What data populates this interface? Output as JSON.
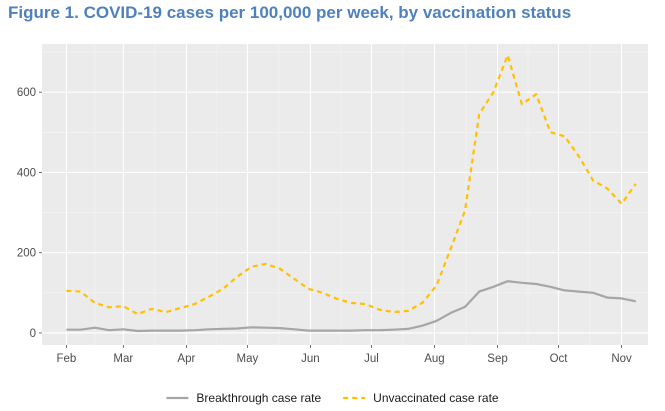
{
  "figure": {
    "title": "Figure 1. COVID-19 cases per 100,000 per week, by vaccination status"
  },
  "chart_data": {
    "type": "line",
    "title": "",
    "xlabel": "",
    "ylabel": "",
    "x_ticks": [
      "Feb",
      "Mar",
      "Apr",
      "May",
      "Jun",
      "Jul",
      "Aug",
      "Sep",
      "Oct",
      "Nov"
    ],
    "y_ticks": [
      0,
      200,
      400,
      600
    ],
    "ylim": [
      -30,
      720
    ],
    "grid": true,
    "legend_position": "bottom",
    "series": [
      {
        "name": "Breakthrough case rate",
        "color": "#a6a6a6",
        "style": "solid",
        "points": [
          {
            "x": "2021-02-01",
            "y": 8
          },
          {
            "x": "2021-02-08",
            "y": 8
          },
          {
            "x": "2021-02-15",
            "y": 13
          },
          {
            "x": "2021-02-22",
            "y": 7
          },
          {
            "x": "2021-03-01",
            "y": 9
          },
          {
            "x": "2021-03-08",
            "y": 5
          },
          {
            "x": "2021-03-15",
            "y": 6
          },
          {
            "x": "2021-03-22",
            "y": 6
          },
          {
            "x": "2021-03-29",
            "y": 6
          },
          {
            "x": "2021-04-05",
            "y": 7
          },
          {
            "x": "2021-04-12",
            "y": 9
          },
          {
            "x": "2021-04-19",
            "y": 10
          },
          {
            "x": "2021-04-26",
            "y": 11
          },
          {
            "x": "2021-05-03",
            "y": 14
          },
          {
            "x": "2021-05-10",
            "y": 13
          },
          {
            "x": "2021-05-17",
            "y": 12
          },
          {
            "x": "2021-05-24",
            "y": 9
          },
          {
            "x": "2021-05-31",
            "y": 6
          },
          {
            "x": "2021-06-07",
            "y": 6
          },
          {
            "x": "2021-06-14",
            "y": 6
          },
          {
            "x": "2021-06-21",
            "y": 6
          },
          {
            "x": "2021-06-28",
            "y": 7
          },
          {
            "x": "2021-07-05",
            "y": 7
          },
          {
            "x": "2021-07-12",
            "y": 8
          },
          {
            "x": "2021-07-19",
            "y": 10
          },
          {
            "x": "2021-07-26",
            "y": 18
          },
          {
            "x": "2021-08-02",
            "y": 30
          },
          {
            "x": "2021-08-09",
            "y": 50
          },
          {
            "x": "2021-08-16",
            "y": 65
          },
          {
            "x": "2021-08-23",
            "y": 103
          },
          {
            "x": "2021-08-30",
            "y": 115
          },
          {
            "x": "2021-09-06",
            "y": 129
          },
          {
            "x": "2021-09-13",
            "y": 125
          },
          {
            "x": "2021-09-20",
            "y": 122
          },
          {
            "x": "2021-09-27",
            "y": 115
          },
          {
            "x": "2021-10-04",
            "y": 106
          },
          {
            "x": "2021-10-11",
            "y": 103
          },
          {
            "x": "2021-10-18",
            "y": 100
          },
          {
            "x": "2021-10-25",
            "y": 88
          },
          {
            "x": "2021-11-01",
            "y": 86
          },
          {
            "x": "2021-11-08",
            "y": 79
          }
        ]
      },
      {
        "name": "Unvaccinated case rate",
        "color": "#ffc000",
        "style": "dashed",
        "points": [
          {
            "x": "2021-02-01",
            "y": 105
          },
          {
            "x": "2021-02-08",
            "y": 103
          },
          {
            "x": "2021-02-15",
            "y": 75
          },
          {
            "x": "2021-02-22",
            "y": 64
          },
          {
            "x": "2021-03-01",
            "y": 67
          },
          {
            "x": "2021-03-08",
            "y": 47
          },
          {
            "x": "2021-03-15",
            "y": 60
          },
          {
            "x": "2021-03-22",
            "y": 52
          },
          {
            "x": "2021-03-29",
            "y": 62
          },
          {
            "x": "2021-04-05",
            "y": 72
          },
          {
            "x": "2021-04-12",
            "y": 90
          },
          {
            "x": "2021-04-19",
            "y": 110
          },
          {
            "x": "2021-04-26",
            "y": 140
          },
          {
            "x": "2021-05-03",
            "y": 165
          },
          {
            "x": "2021-05-10",
            "y": 172
          },
          {
            "x": "2021-05-17",
            "y": 160
          },
          {
            "x": "2021-05-24",
            "y": 135
          },
          {
            "x": "2021-05-31",
            "y": 110
          },
          {
            "x": "2021-06-07",
            "y": 100
          },
          {
            "x": "2021-06-14",
            "y": 85
          },
          {
            "x": "2021-06-21",
            "y": 75
          },
          {
            "x": "2021-06-28",
            "y": 72
          },
          {
            "x": "2021-07-05",
            "y": 58
          },
          {
            "x": "2021-07-12",
            "y": 52
          },
          {
            "x": "2021-07-19",
            "y": 55
          },
          {
            "x": "2021-07-26",
            "y": 75
          },
          {
            "x": "2021-08-02",
            "y": 118
          },
          {
            "x": "2021-08-09",
            "y": 210
          },
          {
            "x": "2021-08-16",
            "y": 305
          },
          {
            "x": "2021-08-23",
            "y": 545
          },
          {
            "x": "2021-08-30",
            "y": 600
          },
          {
            "x": "2021-09-06",
            "y": 692
          },
          {
            "x": "2021-09-13",
            "y": 570
          },
          {
            "x": "2021-09-20",
            "y": 595
          },
          {
            "x": "2021-09-27",
            "y": 500
          },
          {
            "x": "2021-10-04",
            "y": 490
          },
          {
            "x": "2021-10-11",
            "y": 440
          },
          {
            "x": "2021-10-18",
            "y": 380
          },
          {
            "x": "2021-10-25",
            "y": 360
          },
          {
            "x": "2021-11-01",
            "y": 322
          },
          {
            "x": "2021-11-08",
            "y": 372
          }
        ]
      }
    ]
  }
}
